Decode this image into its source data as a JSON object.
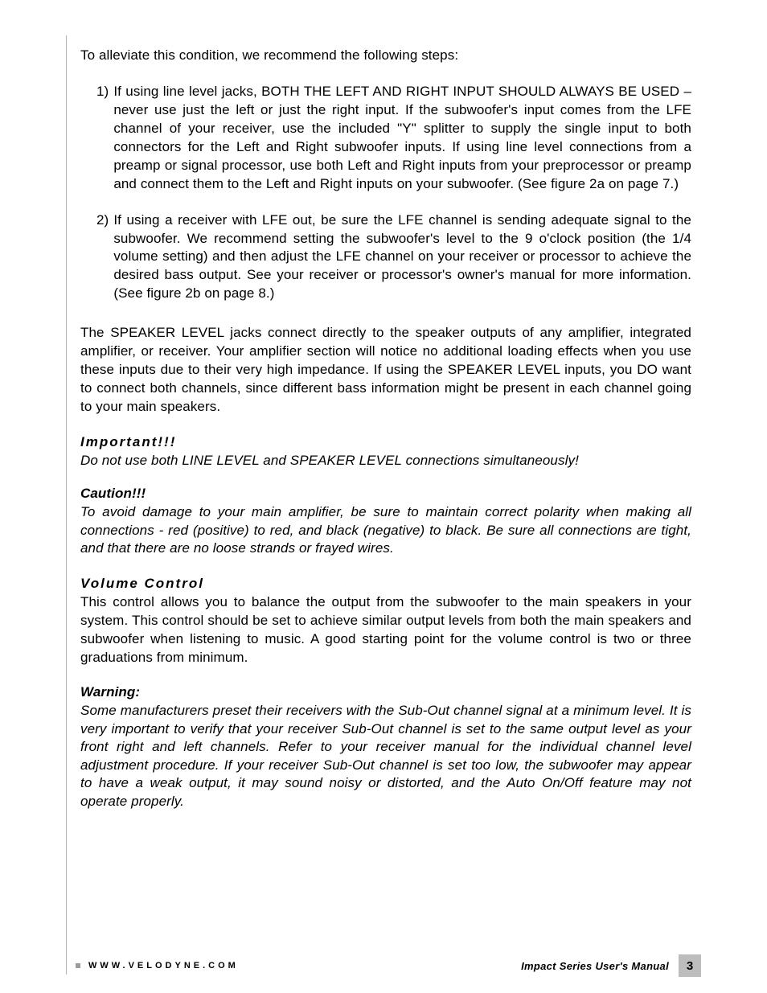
{
  "intro": "To alleviate this condition, we recommend the following steps:",
  "steps": [
    {
      "n": "1)",
      "text": "If using line level jacks, BOTH THE LEFT AND RIGHT INPUT SHOULD ALWAYS BE USED – never use just the left or just the right input.  If the subwoofer's input comes from the LFE channel of your receiver, use the included \"Y\" splitter to supply the single input to both connectors for the Left and Right subwoofer inputs.  If using line level connections from a preamp or signal processor, use both Left and Right inputs from your preprocessor or preamp and connect them to the Left and Right inputs on your subwoofer. (See figure 2a on page 7.)"
    },
    {
      "n": "2)",
      "text": "If using a receiver with LFE out, be sure the LFE channel is sending adequate signal to the subwoofer. We recommend setting the subwoofer's level to the 9 o'clock position (the 1/4 volume setting) and then adjust the LFE channel on your receiver or processor to achieve the desired bass output. See your receiver or processor's owner's manual for more information. (See figure 2b on page 8.)"
    }
  ],
  "speaker_level": "The SPEAKER LEVEL jacks connect directly to the speaker outputs of any amplifier, integrated amplifier, or receiver. Your amplifier section will notice no additional loading effects when you use these inputs due to their very high impedance. If using the SPEAKER LEVEL inputs, you DO want to connect both channels, since different bass information might be present in each channel going to your main speakers.",
  "important": {
    "heading": "Important!!!",
    "body": "Do not use both LINE LEVEL and SPEAKER LEVEL connections simultaneously!"
  },
  "caution": {
    "heading": "Caution!!!",
    "body": "To avoid damage to your main amplifier, be sure to maintain correct polarity when making all connections - red (positive) to red, and black (negative) to black. Be sure all connections are tight, and that there are no loose strands or frayed wires."
  },
  "volume": {
    "heading": "Volume Control",
    "body": "This control allows you to balance the output from the subwoofer to the main speakers in your system. This control should be set to achieve similar output levels from both the main speakers and subwoofer when listening to music.  A good starting point for the volume control is two or three graduations from minimum."
  },
  "warning": {
    "heading": "Warning:",
    "body": "Some manufacturers preset their receivers with the Sub-Out channel signal at a minimum level. It is very important to verify that your receiver Sub-Out channel is set to the same output level as your front right and left channels. Refer to your receiver manual for the individual channel level adjustment procedure. If your receiver Sub-Out channel is set too low, the subwoofer may appear to have a weak output, it may sound noisy or distorted, and the Auto On/Off feature may not operate properly."
  },
  "footer": {
    "url": "WWW.VELODYNE.COM",
    "title": "Impact Series User's Manual",
    "page": "3"
  }
}
